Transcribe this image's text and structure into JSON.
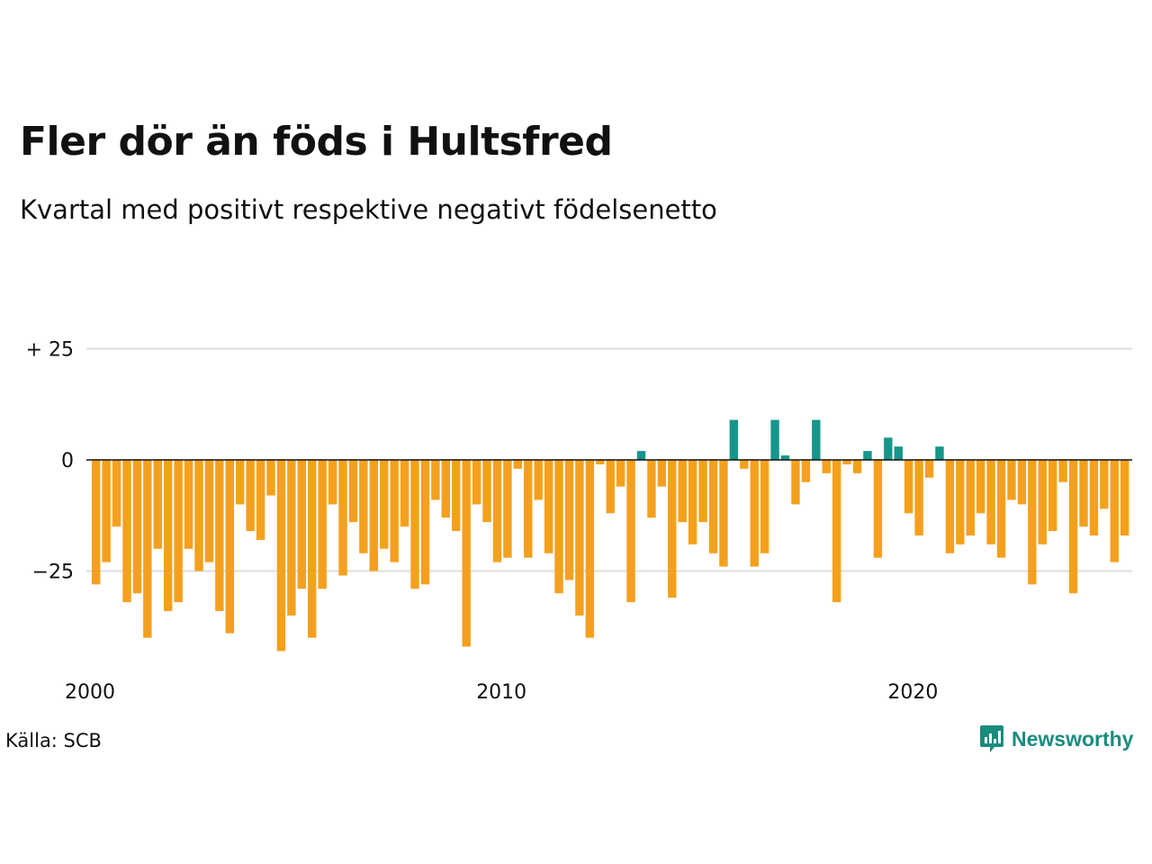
{
  "header": {
    "title": "Fler dör än föds i Hultsfred",
    "subtitle": "Kvartal med positivt respektive negativt födelsenetto"
  },
  "footer": {
    "source": "Källa: SCB",
    "brand": "Newsworthy",
    "brand_icon": "newsworthy-logo-icon"
  },
  "colors": {
    "positive": "#16968a",
    "negative": "#f5a01d",
    "grid": "#dddddd",
    "zero_line": "#111111",
    "brand": "#1a8c7e"
  },
  "chart_data": {
    "type": "bar",
    "x_start": "2000 Q1",
    "x_ticks": [
      {
        "year": 2000,
        "label": "2000"
      },
      {
        "year": 2010,
        "label": "2010"
      },
      {
        "year": 2020,
        "label": "2020"
      }
    ],
    "y_ticks": [
      {
        "value": 25,
        "label": "+ 25"
      },
      {
        "value": 0,
        "label": "0"
      },
      {
        "value": -25,
        "label": "−25"
      }
    ],
    "ylim": [
      -45,
      28
    ],
    "grid": true,
    "values": [
      -28,
      -23,
      -15,
      -32,
      -30,
      -40,
      -20,
      -34,
      -32,
      -20,
      -25,
      -23,
      -34,
      -39,
      -10,
      -16,
      -18,
      -8,
      -43,
      -35,
      -29,
      -40,
      -29,
      -10,
      -26,
      -14,
      -21,
      -25,
      -20,
      -23,
      -15,
      -29,
      -28,
      -9,
      -13,
      -16,
      -42,
      -10,
      -14,
      -23,
      -22,
      -2,
      -22,
      -9,
      -21,
      -30,
      -27,
      -35,
      -40,
      -1,
      -12,
      -6,
      -32,
      2,
      -13,
      -6,
      -31,
      -14,
      -19,
      -14,
      -21,
      -24,
      9,
      -2,
      -24,
      -21,
      9,
      1,
      -10,
      -5,
      9,
      -3,
      -32,
      -1,
      -3,
      2,
      -22,
      5,
      3,
      -12,
      -17,
      -4,
      3,
      -21,
      -19,
      -17,
      -12,
      -19,
      -22,
      -9,
      -10,
      -28,
      -19,
      -16,
      -5,
      -30,
      -15,
      -17,
      -11,
      -23,
      -17
    ]
  }
}
